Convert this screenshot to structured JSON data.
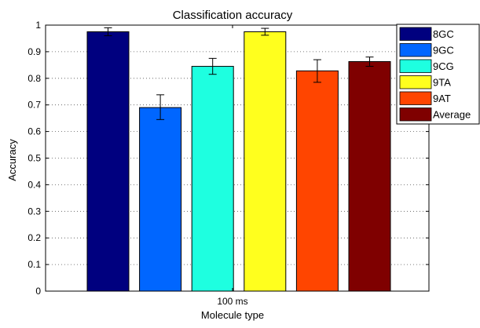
{
  "chart_data": {
    "type": "bar",
    "title": "Classification accuracy",
    "xlabel": "Molecule type",
    "ylabel": "Accuracy",
    "categories": [
      "100 ms"
    ],
    "ylim": [
      0,
      1
    ],
    "yticks": [
      "0",
      "0.1",
      "0.2",
      "0.3",
      "0.4",
      "0.5",
      "0.6",
      "0.7",
      "0.8",
      "0.9",
      "1"
    ],
    "grid": true,
    "legend_position": "top-right",
    "series": [
      {
        "name": "8GC",
        "value": 0.975,
        "error_low": 0.96,
        "error_high": 0.99,
        "color": "#00007f"
      },
      {
        "name": "9GC",
        "value": 0.69,
        "error_low": 0.645,
        "error_high": 0.738,
        "color": "#0066ff"
      },
      {
        "name": "9CG",
        "value": 0.845,
        "error_low": 0.815,
        "error_high": 0.875,
        "color": "#1effe0"
      },
      {
        "name": "9TA",
        "value": 0.975,
        "error_low": 0.962,
        "error_high": 0.988,
        "color": "#ffff1e"
      },
      {
        "name": "9AT",
        "value": 0.828,
        "error_low": 0.785,
        "error_high": 0.87,
        "color": "#ff4500"
      },
      {
        "name": "Average",
        "value": 0.863,
        "error_low": 0.845,
        "error_high": 0.88,
        "color": "#7f0000"
      }
    ]
  }
}
